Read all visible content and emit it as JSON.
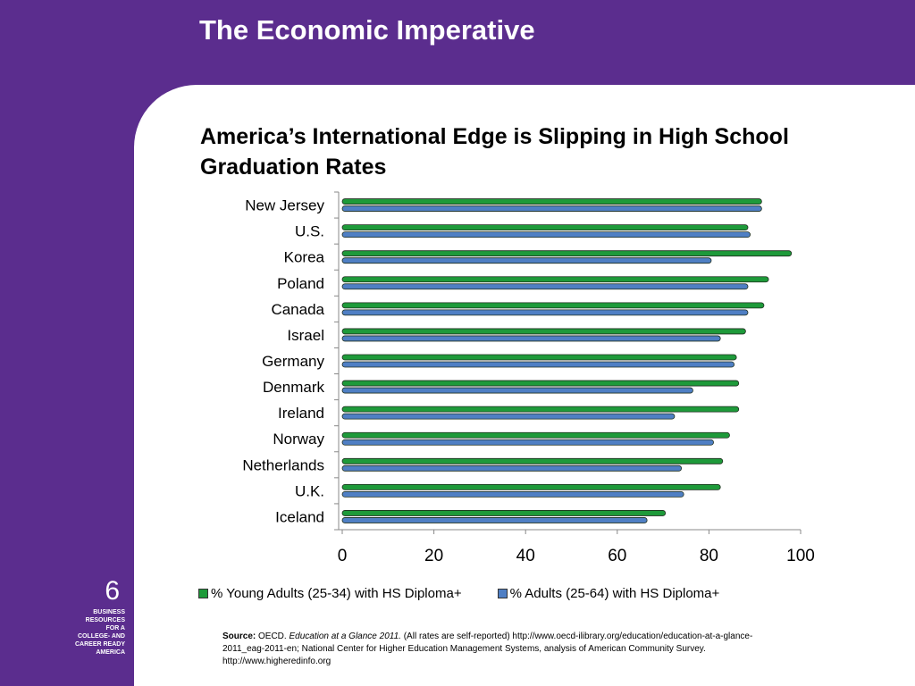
{
  "slide": {
    "title": "The Economic Imperative",
    "page_number": "6",
    "org_lines": [
      "BUSINESS",
      "RESOURCES",
      "FOR A",
      "COLLEGE- AND",
      "CAREER READY",
      "AMERICA"
    ]
  },
  "colors": {
    "background": "#5b2d8e",
    "panel": "#ffffff",
    "young_adults": "#1e9a3a",
    "adults": "#4f7fc4"
  },
  "chart_data": {
    "type": "bar",
    "orientation": "horizontal",
    "title": "America’s International Edge is Slipping in High School Graduation Rates",
    "categories": [
      "New Jersey",
      "U.S.",
      "Korea",
      "Poland",
      "Canada",
      "Israel",
      "Germany",
      "Denmark",
      "Ireland",
      "Norway",
      "Netherlands",
      "U.K.",
      "Iceland"
    ],
    "series": [
      {
        "name": "% Young Adults (25-34) with HS Diploma+",
        "values": [
          91.5,
          88.5,
          98,
          93,
          92,
          88,
          86,
          86.5,
          86.5,
          84.5,
          83,
          82.5,
          70.5
        ]
      },
      {
        "name": "% Adults (25-64) with HS Diploma+",
        "values": [
          91.5,
          89,
          80.5,
          88.5,
          88.5,
          82.5,
          85.5,
          76.5,
          72.5,
          81,
          74,
          74.5,
          66.5
        ]
      }
    ],
    "xlim": [
      0,
      100
    ],
    "x_ticks": [
      "0",
      "20",
      "40",
      "60",
      "80",
      "100"
    ],
    "grid": false,
    "legend_position": "bottom"
  },
  "source": {
    "label": "Source:",
    "org": "OECD.",
    "publication": "Education at a Glance 2011.",
    "text": "(All rates are self-reported) http://www.oecd-ilibrary.org/education/education-at-a-glance-2011_eag-2011-en; National Center for Higher Education Management Systems, analysis of American Community Survey.  http://www.higheredinfo.org"
  }
}
